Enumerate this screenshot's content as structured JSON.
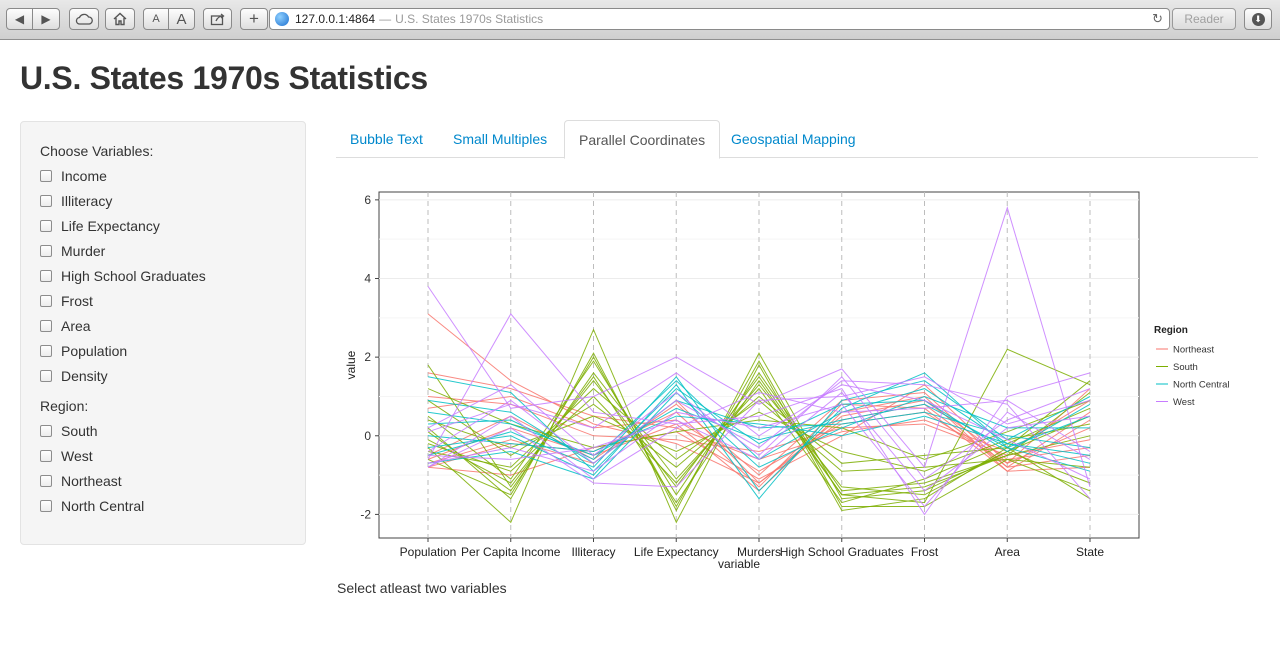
{
  "browser": {
    "address_url": "127.0.0.1:4864",
    "address_separator": "—",
    "page_title": "U.S. States 1970s Statistics",
    "reader_label": "Reader",
    "font_small_label": "A",
    "font_large_label": "A",
    "add_label": "+"
  },
  "page": {
    "title": "U.S. States 1970s Statistics"
  },
  "sidebar": {
    "variables_label": "Choose Variables:",
    "variables": [
      "Income",
      "Illiteracy",
      "Life Expectancy",
      "Murder",
      "High School Graduates",
      "Frost",
      "Area",
      "Population",
      "Density"
    ],
    "region_label": "Region:",
    "regions": [
      "South",
      "West",
      "Northeast",
      "North Central"
    ]
  },
  "tabs": [
    {
      "label": "Bubble Text",
      "active": false
    },
    {
      "label": "Small Multiples",
      "active": false
    },
    {
      "label": "Parallel Coordinates",
      "active": true
    },
    {
      "label": "Geospatial Mapping",
      "active": false
    }
  ],
  "status": {
    "message": "Select atleast two variables"
  },
  "chart_data": {
    "type": "line",
    "subtype": "parallel-coordinates",
    "categories": [
      "Population",
      "Per Capita Income",
      "Illiteracy",
      "Life Expectancy",
      "Murders",
      "High School Graduates",
      "Frost",
      "Area",
      "State"
    ],
    "xlabel": "variable",
    "ylabel": "value",
    "ylim": [
      -2.6,
      6.2
    ],
    "yticks": [
      -2,
      0,
      2,
      4,
      6
    ],
    "legend": {
      "title": "Region",
      "placement": "right",
      "entries": [
        {
          "name": "Northeast",
          "color": "#F8766D"
        },
        {
          "name": "South",
          "color": "#7CAE00"
        },
        {
          "name": "North Central",
          "color": "#00BFC4"
        },
        {
          "name": "West",
          "color": "#C77CFF"
        }
      ]
    },
    "series": [
      {
        "name": "Northeast",
        "values": [
          3.1,
          1.4,
          0.3,
          -0.2,
          -1.2,
          0.5,
          0.9,
          -0.6,
          -0.3
        ]
      },
      {
        "name": "Northeast",
        "values": [
          0.7,
          1.0,
          0.2,
          0.4,
          -0.9,
          0.3,
          0.6,
          -0.7,
          0.2
        ]
      },
      {
        "name": "Northeast",
        "values": [
          -0.5,
          0.5,
          -0.6,
          0.8,
          -1.0,
          0.9,
          1.1,
          -0.8,
          0.6
        ]
      },
      {
        "name": "Northeast",
        "values": [
          -0.8,
          -0.2,
          -0.4,
          0.6,
          -1.3,
          0.8,
          0.7,
          -0.9,
          -0.8
        ]
      },
      {
        "name": "Northeast",
        "values": [
          1.6,
          1.2,
          0.5,
          0.2,
          -0.6,
          0.1,
          0.4,
          -0.4,
          0.9
        ]
      },
      {
        "name": "Northeast",
        "values": [
          -0.7,
          -0.1,
          -0.7,
          0.9,
          -1.2,
          0.4,
          0.8,
          -0.8,
          -0.5
        ]
      },
      {
        "name": "Northeast",
        "values": [
          -0.6,
          0.2,
          -0.5,
          0.3,
          -1.4,
          0.6,
          1.0,
          -0.9,
          0.4
        ]
      },
      {
        "name": "Northeast",
        "values": [
          1.0,
          0.8,
          0.0,
          -0.1,
          -0.4,
          0.2,
          0.3,
          -0.5,
          -0.1
        ]
      },
      {
        "name": "Northeast",
        "values": [
          -0.8,
          -1.0,
          -0.3,
          0.1,
          -1.1,
          0.0,
          1.3,
          -0.7,
          1.2
        ]
      },
      {
        "name": "South",
        "values": [
          0.2,
          -1.6,
          2.1,
          -1.9,
          2.1,
          -1.6,
          -1.4,
          -0.4,
          0.5
        ]
      },
      {
        "name": "South",
        "values": [
          -0.3,
          -2.2,
          2.7,
          -2.2,
          1.8,
          -1.9,
          -1.6,
          -0.3,
          -1.6
        ]
      },
      {
        "name": "South",
        "values": [
          1.8,
          -1.3,
          1.5,
          -1.7,
          1.4,
          -1.5,
          -1.7,
          2.2,
          1.3
        ]
      },
      {
        "name": "South",
        "values": [
          0.5,
          -1.1,
          1.9,
          -1.5,
          1.6,
          -1.4,
          -1.2,
          -0.5,
          1.1
        ]
      },
      {
        "name": "South",
        "values": [
          -0.4,
          -0.8,
          1.2,
          -0.6,
          0.9,
          -0.9,
          -0.8,
          -0.6,
          -0.8
        ]
      },
      {
        "name": "South",
        "values": [
          0.1,
          -1.4,
          1.6,
          -1.1,
          1.2,
          -1.7,
          -1.1,
          -0.2,
          0.7
        ]
      },
      {
        "name": "South",
        "values": [
          0.9,
          -0.5,
          0.8,
          -0.8,
          1.0,
          -0.7,
          -0.5,
          -0.3,
          1.4
        ]
      },
      {
        "name": "South",
        "values": [
          -0.2,
          -0.9,
          1.0,
          -1.2,
          1.3,
          -1.3,
          -1.5,
          -0.4,
          -1.2
        ]
      },
      {
        "name": "South",
        "values": [
          0.4,
          -0.3,
          0.5,
          -0.4,
          0.6,
          -0.4,
          -0.9,
          -0.1,
          0.3
        ]
      },
      {
        "name": "South",
        "values": [
          -0.6,
          -1.5,
          2.0,
          -1.8,
          1.9,
          -1.8,
          -1.8,
          -0.6,
          -1.4
        ]
      },
      {
        "name": "South",
        "values": [
          1.2,
          0.3,
          -0.3,
          0.1,
          0.4,
          0.2,
          -0.6,
          0.1,
          0.9
        ]
      },
      {
        "name": "South",
        "values": [
          -0.1,
          -1.2,
          1.4,
          -1.3,
          1.5,
          -1.5,
          -1.3,
          -0.5,
          0.0
        ]
      },
      {
        "name": "North Central",
        "values": [
          1.5,
          1.1,
          -0.9,
          1.2,
          -0.2,
          0.8,
          0.9,
          -0.4,
          0.8
        ]
      },
      {
        "name": "North Central",
        "values": [
          0.3,
          0.4,
          -0.6,
          1.4,
          -0.6,
          0.6,
          1.2,
          -0.2,
          -0.7
        ]
      },
      {
        "name": "North Central",
        "values": [
          -0.5,
          0.1,
          -0.8,
          1.5,
          -1.4,
          0.7,
          1.6,
          -0.3,
          0.5
        ]
      },
      {
        "name": "North Central",
        "values": [
          0.9,
          0.6,
          -0.7,
          0.9,
          0.2,
          0.3,
          0.6,
          0.0,
          -0.3
        ]
      },
      {
        "name": "North Central",
        "values": [
          -0.3,
          0.0,
          -1.0,
          1.3,
          -1.6,
          0.9,
          1.4,
          -0.1,
          1.0
        ]
      },
      {
        "name": "North Central",
        "values": [
          0.6,
          0.3,
          -0.5,
          0.7,
          -0.1,
          0.4,
          0.8,
          -0.3,
          -0.9
        ]
      },
      {
        "name": "North Central",
        "values": [
          -0.7,
          -0.4,
          -1.1,
          1.1,
          -0.8,
          0.2,
          1.0,
          0.2,
          0.2
        ]
      },
      {
        "name": "North Central",
        "values": [
          0.0,
          -0.2,
          -0.4,
          0.5,
          0.3,
          0.0,
          0.5,
          -0.2,
          -0.5
        ]
      },
      {
        "name": "West",
        "values": [
          3.8,
          0.7,
          1.0,
          2.0,
          0.8,
          1.7,
          -0.8,
          5.8,
          -1.3
        ]
      },
      {
        "name": "West",
        "values": [
          -0.6,
          3.1,
          0.6,
          0.3,
          0.5,
          1.2,
          -2.0,
          1.0,
          1.6
        ]
      },
      {
        "name": "West",
        "values": [
          -0.4,
          0.9,
          -0.7,
          0.9,
          -0.3,
          1.4,
          1.3,
          0.8,
          -1.6
        ]
      },
      {
        "name": "West",
        "values": [
          -0.8,
          0.2,
          -1.2,
          -1.3,
          0.9,
          1.0,
          1.5,
          0.3,
          0.9
        ]
      },
      {
        "name": "West",
        "values": [
          -0.7,
          -0.3,
          -0.9,
          0.6,
          0.2,
          0.8,
          -1.8,
          0.6,
          -0.6
        ]
      },
      {
        "name": "West",
        "values": [
          0.2,
          1.3,
          -0.5,
          1.1,
          -0.5,
          1.5,
          -1.1,
          0.4,
          1.2
        ]
      },
      {
        "name": "West",
        "values": [
          -0.8,
          0.5,
          -1.1,
          0.2,
          1.1,
          0.6,
          0.7,
          0.9,
          -0.4
        ]
      },
      {
        "name": "West",
        "values": [
          -0.5,
          -0.6,
          -0.3,
          0.4,
          -0.6,
          1.1,
          -1.4,
          0.2,
          0.5
        ]
      },
      {
        "name": "West",
        "values": [
          0.1,
          0.8,
          0.2,
          1.6,
          0.0,
          1.3,
          0.9,
          -0.1,
          -1.1
        ]
      }
    ]
  }
}
